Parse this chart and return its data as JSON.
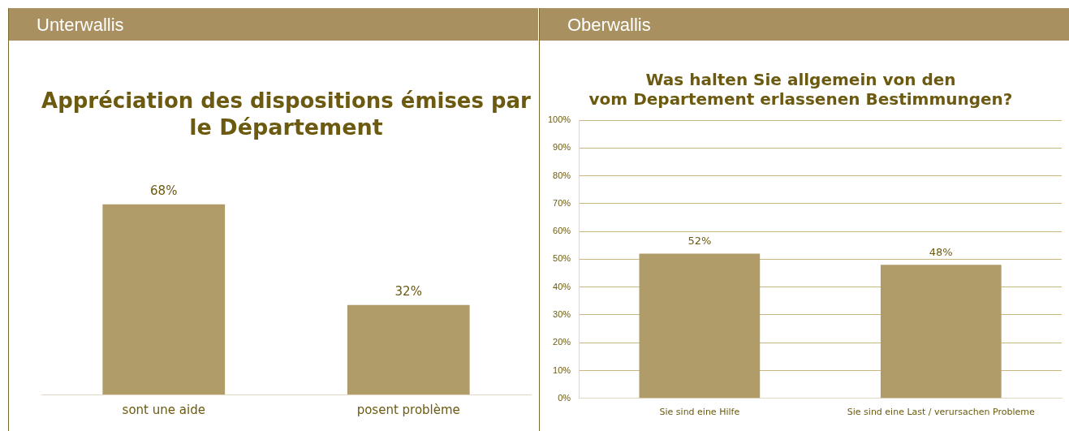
{
  "chart_data": [
    {
      "type": "bar",
      "subtitle": "Unterwallis",
      "title": "Appréciation des dispositions émises par le Département",
      "categories": [
        "sont une aide",
        "posent problème"
      ],
      "values": [
        68,
        32
      ],
      "value_labels": [
        "68%",
        "32%"
      ],
      "color": "#b09c68",
      "tick_labels": "x"
    },
    {
      "type": "bar",
      "subtitle": "Oberwallis",
      "title": "Was halten Sie allgemein von den vom Departement erlassenen Bestimmungen?",
      "categories": [
        "Sie sind eine Hilfe",
        "Sie sind eine Last / verursachen Probleme"
      ],
      "values": [
        52,
        48
      ],
      "value_labels": [
        "52%",
        "48%"
      ],
      "color": "#b09c68",
      "ylim": [
        0,
        100
      ],
      "yticks": [
        {
          "value": 0,
          "label": "0%"
        },
        {
          "value": 10,
          "label": "10%"
        },
        {
          "value": 20,
          "label": "20%"
        },
        {
          "value": 30,
          "label": "30%"
        },
        {
          "value": 40,
          "label": "40%"
        },
        {
          "value": 50,
          "label": "50%"
        },
        {
          "value": 60,
          "label": "60%"
        },
        {
          "value": 70,
          "label": "70%"
        },
        {
          "value": 80,
          "label": "80%"
        },
        {
          "value": 90,
          "label": "90%"
        },
        {
          "value": 100,
          "label": "100%"
        }
      ],
      "grid": "y"
    }
  ]
}
